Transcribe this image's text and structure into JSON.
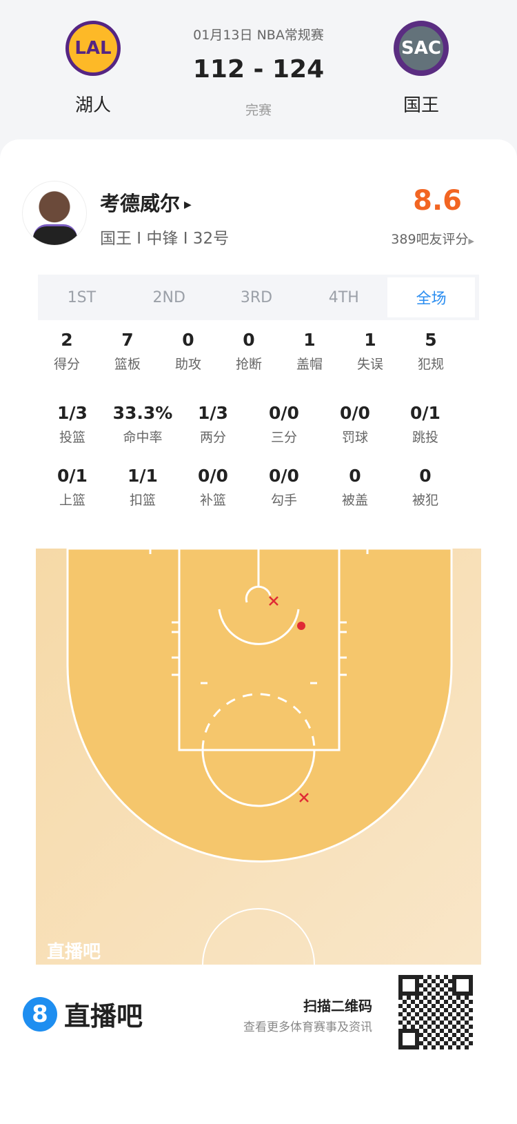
{
  "match": {
    "date_league": "01月13日 NBA常规赛",
    "score": "112 - 124",
    "status": "完赛",
    "home": {
      "name": "湖人",
      "abbr": "LAL",
      "color": "#552583",
      "secondary": "#fdb927"
    },
    "away": {
      "name": "国王",
      "abbr": "SAC",
      "color": "#5a2d81",
      "secondary": "#63727a"
    }
  },
  "player": {
    "name": "考德威尔",
    "info": "国王 I 中锋 I 32号",
    "rating": "8.6",
    "rating_label": "389吧友评分",
    "rating_color": "#f26522"
  },
  "tabs": [
    {
      "label": "1ST"
    },
    {
      "label": "2ND"
    },
    {
      "label": "3RD"
    },
    {
      "label": "4TH"
    },
    {
      "label": "全场",
      "active": true
    }
  ],
  "stats_row1": [
    {
      "v": "2",
      "l": "得分"
    },
    {
      "v": "7",
      "l": "篮板"
    },
    {
      "v": "0",
      "l": "助攻"
    },
    {
      "v": "0",
      "l": "抢断"
    },
    {
      "v": "1",
      "l": "盖帽"
    },
    {
      "v": "1",
      "l": "失误"
    },
    {
      "v": "5",
      "l": "犯规"
    }
  ],
  "stats_row2": [
    {
      "v": "1/3",
      "l": "投篮"
    },
    {
      "v": "33.3%",
      "l": "命中率"
    },
    {
      "v": "1/3",
      "l": "两分"
    },
    {
      "v": "0/0",
      "l": "三分"
    },
    {
      "v": "0/0",
      "l": "罚球"
    },
    {
      "v": "0/1",
      "l": "跳投"
    }
  ],
  "stats_row3": [
    {
      "v": "0/1",
      "l": "上篮"
    },
    {
      "v": "1/1",
      "l": "扣篮"
    },
    {
      "v": "0/0",
      "l": "补篮"
    },
    {
      "v": "0/0",
      "l": "勾手"
    },
    {
      "v": "0",
      "l": "被盖"
    },
    {
      "v": "0",
      "l": "被犯"
    }
  ],
  "shot_chart": {
    "watermark": "直播吧",
    "shots": [
      {
        "result": "missed"
      },
      {
        "result": "made"
      },
      {
        "result": "missed"
      }
    ],
    "shot_color": "#e02a35"
  },
  "footer": {
    "brand": "直播吧",
    "scan": "扫描二维码",
    "scan_sub": "查看更多体育赛事及资讯"
  }
}
